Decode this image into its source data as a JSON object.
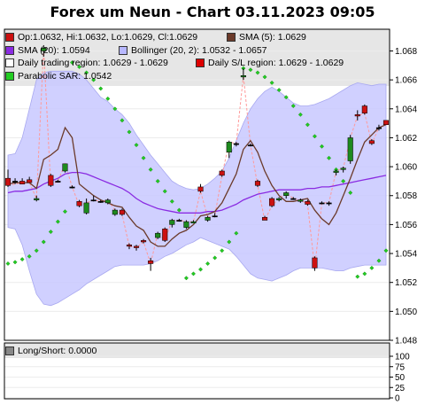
{
  "title": "Forex um Neun - Chart 03.11.2023 09:05",
  "legend": [
    [
      {
        "label": "Op:1.0632, Hi:1.0632, Lo:1.0629, Cl:1.0629",
        "color": "#cc1111"
      },
      {
        "label": "SMA (5): 1.0629",
        "color": "#6b3a2a"
      }
    ],
    [
      {
        "label": "SMA (20): 1.0594",
        "color": "#8a2be2"
      },
      {
        "label": "Bollinger (20, 2): 1.0532 - 1.0657",
        "color": "#b8b8ff"
      }
    ],
    [
      {
        "label": "Daily trading region: 1.0629 - 1.0629",
        "color": "#ffffff"
      },
      {
        "label": "Daily S/L region: 1.0629 - 1.0629",
        "color": "#dd0000"
      }
    ],
    [
      {
        "label": "Parabolic SAR: 1.0542",
        "color": "#22cc22"
      }
    ]
  ],
  "sub_legend": {
    "label": "Long/Short: 0.0000",
    "color": "#888888"
  },
  "chart_data": [
    {
      "type": "candlestick",
      "title": "Forex um Neun - Chart 03.11.2023 09:05",
      "ylim": [
        1.048,
        1.0695
      ],
      "y_ticks": [
        "1.048",
        "1.050",
        "1.052",
        "1.054",
        "1.056",
        "1.058",
        "1.060",
        "1.062",
        "1.064",
        "1.066",
        "1.068"
      ],
      "grid": true,
      "legend_position": "top-left",
      "candles": [
        {
          "o": 1.0592,
          "h": 1.0598,
          "l": 1.0586,
          "c": 1.0587
        },
        {
          "o": 1.059,
          "h": 1.0592,
          "l": 1.0588,
          "c": 1.059
        },
        {
          "o": 1.059,
          "h": 1.0592,
          "l": 1.0588,
          "c": 1.0588
        },
        {
          "o": 1.0591,
          "h": 1.0593,
          "l": 1.0589,
          "c": 1.0589
        },
        {
          "o": 1.0577,
          "h": 1.058,
          "l": 1.0576,
          "c": 1.0578
        },
        {
          "o": 1.068,
          "h": 1.0684,
          "l": 1.0676,
          "c": 1.0682
        },
        {
          "o": 1.0594,
          "h": 1.0595,
          "l": 1.0586,
          "c": 1.0587
        },
        {
          "o": 1.059,
          "h": 1.0591,
          "l": 1.0589,
          "c": 1.059
        },
        {
          "o": 1.0597,
          "h": 1.0602,
          "l": 1.0596,
          "c": 1.0602
        },
        {
          "o": 1.0586,
          "h": 1.0587,
          "l": 1.0585,
          "c": 1.0586
        },
        {
          "o": 1.0576,
          "h": 1.0577,
          "l": 1.0572,
          "c": 1.0573
        },
        {
          "o": 1.0568,
          "h": 1.0578,
          "l": 1.0567,
          "c": 1.0575
        },
        {
          "o": 1.0577,
          "h": 1.058,
          "l": 1.0576,
          "c": 1.0577
        },
        {
          "o": 1.0576,
          "h": 1.0577,
          "l": 1.0575,
          "c": 1.0576
        },
        {
          "o": 1.0575,
          "h": 1.0578,
          "l": 1.0574,
          "c": 1.0577
        },
        {
          "o": 1.0567,
          "h": 1.0571,
          "l": 1.0566,
          "c": 1.057
        },
        {
          "o": 1.057,
          "h": 1.0571,
          "l": 1.0566,
          "c": 1.0567
        },
        {
          "o": 1.0546,
          "h": 1.0547,
          "l": 1.0543,
          "c": 1.0545
        },
        {
          "o": 1.0545,
          "h": 1.0546,
          "l": 1.0542,
          "c": 1.0544
        },
        {
          "o": 1.0549,
          "h": 1.055,
          "l": 1.0547,
          "c": 1.0548
        },
        {
          "o": 1.0535,
          "h": 1.0537,
          "l": 1.0528,
          "c": 1.0533
        },
        {
          "o": 1.0551,
          "h": 1.0555,
          "l": 1.055,
          "c": 1.0554
        },
        {
          "o": 1.0557,
          "h": 1.0558,
          "l": 1.0548,
          "c": 1.0549
        },
        {
          "o": 1.056,
          "h": 1.0564,
          "l": 1.0558,
          "c": 1.0563
        },
        {
          "o": 1.0563,
          "h": 1.0564,
          "l": 1.0562,
          "c": 1.0563
        },
        {
          "o": 1.0558,
          "h": 1.0563,
          "l": 1.0557,
          "c": 1.0562
        },
        {
          "o": 1.0561,
          "h": 1.0563,
          "l": 1.0561,
          "c": 1.0562
        },
        {
          "o": 1.0586,
          "h": 1.0588,
          "l": 1.0582,
          "c": 1.0583
        },
        {
          "o": 1.0563,
          "h": 1.0566,
          "l": 1.0562,
          "c": 1.0565
        },
        {
          "o": 1.0566,
          "h": 1.0568,
          "l": 1.0565,
          "c": 1.0566
        },
        {
          "o": 1.0597,
          "h": 1.0598,
          "l": 1.0593,
          "c": 1.0594
        },
        {
          "o": 1.061,
          "h": 1.0618,
          "l": 1.0606,
          "c": 1.0617
        },
        {
          "o": 1.0616,
          "h": 1.0617,
          "l": 1.0614,
          "c": 1.0616
        },
        {
          "o": 1.0662,
          "h": 1.0668,
          "l": 1.066,
          "c": 1.0663
        },
        {
          "o": 1.0615,
          "h": 1.0616,
          "l": 1.0614,
          "c": 1.0615
        },
        {
          "o": 1.059,
          "h": 1.0591,
          "l": 1.0586,
          "c": 1.0587
        },
        {
          "o": 1.0565,
          "h": 1.0566,
          "l": 1.0563,
          "c": 1.0563
        },
        {
          "o": 1.0578,
          "h": 1.0579,
          "l": 1.0572,
          "c": 1.0573
        },
        {
          "o": 1.0577,
          "h": 1.0579,
          "l": 1.0576,
          "c": 1.0578
        },
        {
          "o": 1.058,
          "h": 1.0583,
          "l": 1.0578,
          "c": 1.0582
        },
        {
          "o": 1.0578,
          "h": 1.0579,
          "l": 1.0577,
          "c": 1.0578
        },
        {
          "o": 1.0576,
          "h": 1.0578,
          "l": 1.0575,
          "c": 1.0577
        },
        {
          "o": 1.0576,
          "h": 1.0577,
          "l": 1.0573,
          "c": 1.0574
        },
        {
          "o": 1.0537,
          "h": 1.0538,
          "l": 1.0528,
          "c": 1.053
        },
        {
          "o": 1.0575,
          "h": 1.0576,
          "l": 1.0574,
          "c": 1.0575
        },
        {
          "o": 1.0575,
          "h": 1.0576,
          "l": 1.0573,
          "c": 1.0575
        },
        {
          "o": 1.0596,
          "h": 1.0598,
          "l": 1.0594,
          "c": 1.0597
        },
        {
          "o": 1.0598,
          "h": 1.06,
          "l": 1.0596,
          "c": 1.0599
        },
        {
          "o": 1.0604,
          "h": 1.0622,
          "l": 1.0602,
          "c": 1.062
        },
        {
          "o": 1.0636,
          "h": 1.0639,
          "l": 1.0632,
          "c": 1.0635
        },
        {
          "o": 1.0642,
          "h": 1.0643,
          "l": 1.0636,
          "c": 1.0637
        },
        {
          "o": 1.0618,
          "h": 1.0619,
          "l": 1.0615,
          "c": 1.0616
        },
        {
          "o": 1.0627,
          "h": 1.0629,
          "l": 1.0625,
          "c": 1.0627
        },
        {
          "o": 1.0632,
          "h": 1.0632,
          "l": 1.0629,
          "c": 1.0629
        }
      ],
      "series": [
        {
          "name": "SMA (5)",
          "color": "#6b3a2a",
          "values": [
            1.0588,
            1.0589,
            1.0589,
            1.0589,
            1.0585,
            1.0605,
            1.0608,
            1.0612,
            1.0627,
            1.062,
            1.0588,
            1.0584,
            1.058,
            1.0577,
            1.0575,
            1.0573,
            1.0572,
            1.0565,
            1.0559,
            1.0556,
            1.0548,
            1.0545,
            1.0545,
            1.055,
            1.0554,
            1.0556,
            1.056,
            1.0566,
            1.0567,
            1.0569,
            1.0575,
            1.0585,
            1.0595,
            1.0612,
            1.0618,
            1.061,
            1.0597,
            1.0587,
            1.058,
            1.0576,
            1.0576,
            1.0577,
            1.0578,
            1.057,
            1.0564,
            1.056,
            1.0568,
            1.058,
            1.0592,
            1.0605,
            1.0617,
            1.0622,
            1.0627,
            1.0629
          ]
        },
        {
          "name": "SMA (20)",
          "color": "#8a2be2",
          "values": [
            1.0582,
            1.0583,
            1.0583,
            1.0584,
            1.0585,
            1.0588,
            1.059,
            1.0592,
            1.0595,
            1.0596,
            1.0596,
            1.0595,
            1.0593,
            1.0591,
            1.0589,
            1.0587,
            1.0585,
            1.0582,
            1.0578,
            1.0575,
            1.0573,
            1.0571,
            1.057,
            1.0569,
            1.0568,
            1.0568,
            1.0568,
            1.0568,
            1.0569,
            1.0569,
            1.057,
            1.0572,
            1.0574,
            1.0577,
            1.0579,
            1.0581,
            1.0582,
            1.0583,
            1.0584,
            1.0584,
            1.0584,
            1.0584,
            1.0585,
            1.0585,
            1.0586,
            1.0586,
            1.0587,
            1.0588,
            1.0589,
            1.059,
            1.0591,
            1.0592,
            1.0593,
            1.0594
          ]
        },
        {
          "name": "Bollinger upper",
          "color": "#b8b8ff",
          "values": [
            1.0608,
            1.0609,
            1.062,
            1.064,
            1.066,
            1.0665,
            1.0666,
            1.0666,
            1.0666,
            1.0666,
            1.0664,
            1.066,
            1.0654,
            1.0648,
            1.0645,
            1.064,
            1.0636,
            1.063,
            1.0622,
            1.0615,
            1.0608,
            1.0602,
            1.0596,
            1.059,
            1.0587,
            1.0585,
            1.0584,
            1.0585,
            1.0588,
            1.0592,
            1.0597,
            1.0606,
            1.0618,
            1.063,
            1.064,
            1.0647,
            1.0652,
            1.0655,
            1.0652,
            1.0648,
            1.0644,
            1.0642,
            1.0642,
            1.0643,
            1.0645,
            1.0647,
            1.065,
            1.0653,
            1.0656,
            1.0658,
            1.0657,
            1.0656,
            1.0657,
            1.0657
          ]
        },
        {
          "name": "Bollinger lower",
          "color": "#b8b8ff",
          "values": [
            1.0558,
            1.0557,
            1.0546,
            1.0528,
            1.0512,
            1.0505,
            1.0504,
            1.0506,
            1.0509,
            1.0512,
            1.0515,
            1.0519,
            1.0522,
            1.0525,
            1.0528,
            1.0531,
            1.0532,
            1.0532,
            1.0532,
            1.0532,
            1.0533,
            1.0535,
            1.0538,
            1.054,
            1.0543,
            1.0546,
            1.0548,
            1.0551,
            1.0549,
            1.0547,
            1.0545,
            1.0543,
            1.0538,
            1.0532,
            1.0526,
            1.0523,
            1.0522,
            1.0521,
            1.0523,
            1.0525,
            1.0528,
            1.053,
            1.053,
            1.053,
            1.053,
            1.0529,
            1.0528,
            1.0528,
            1.053,
            1.0531,
            1.0532,
            1.0532,
            1.0532,
            1.0532
          ]
        },
        {
          "name": "Parabolic SAR",
          "color": "#22cc22",
          "values": [
            1.0533,
            1.0534,
            1.0536,
            1.0538,
            1.0542,
            1.0548,
            1.0555,
            1.0562,
            1.0569,
            1.0672,
            1.0669,
            1.0665,
            1.066,
            1.0654,
            1.0647,
            1.064,
            1.0632,
            1.0624,
            1.0615,
            1.0606,
            1.0598,
            1.059,
            1.0583,
            1.0576,
            1.057,
            1.0523,
            1.0526,
            1.0529,
            1.0533,
            1.0537,
            1.0542,
            1.0548,
            1.0554,
            1.0668,
            1.0667,
            1.0665,
            1.0662,
            1.0658,
            1.0653,
            1.0648,
            1.0642,
            1.0636,
            1.0629,
            1.0621,
            1.0614,
            1.0606,
            1.0598,
            1.059,
            1.0582,
            1.0524,
            1.0526,
            1.053,
            1.0535,
            1.0542
          ]
        },
        {
          "name": "S/L link",
          "color": "#ff9999",
          "values": [
            1.0587,
            1.0588,
            1.0589,
            1.0589,
            1.0578,
            1.0682,
            1.0587,
            1.059,
            1.0602,
            1.0586,
            1.0573,
            1.0575,
            1.0577,
            1.0576,
            1.0577,
            1.057,
            1.0567,
            1.0545,
            1.0544,
            1.0548,
            1.0533,
            1.0554,
            1.0549,
            1.0563,
            1.0563,
            1.0562,
            1.0562,
            1.0583,
            1.0565,
            1.0566,
            1.0594,
            1.0617,
            1.0616,
            1.0663,
            1.0615,
            1.0587,
            1.0563,
            1.0573,
            1.0578,
            1.0582,
            1.0578,
            1.0577,
            1.0574,
            1.053,
            1.0575,
            1.0575,
            1.0597,
            1.0599,
            1.062,
            1.0635,
            1.0637,
            1.0616,
            1.0627,
            1.0629
          ]
        }
      ]
    },
    {
      "type": "line",
      "title": "",
      "ylim": [
        0,
        100
      ],
      "y_ticks": [
        "0",
        "25",
        "50",
        "75",
        "100"
      ],
      "series": [
        {
          "name": "Long/Short",
          "color": "#888888",
          "values": [
            0
          ]
        }
      ]
    }
  ]
}
